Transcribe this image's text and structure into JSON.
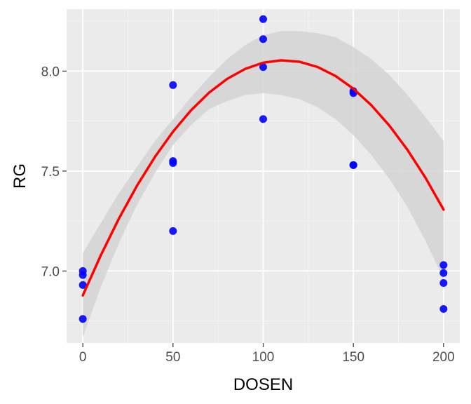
{
  "chart_data": {
    "type": "scatter",
    "title": "",
    "xlabel": "DOSEN",
    "ylabel": "RG",
    "xlim": [
      -9,
      209
    ],
    "ylim": [
      6.64,
      8.31
    ],
    "x_ticks": [
      0,
      50,
      100,
      150,
      200
    ],
    "x_tick_labels": [
      "0",
      "50",
      "100",
      "150",
      "200"
    ],
    "y_ticks": [
      7.0,
      7.5,
      8.0
    ],
    "y_tick_labels": [
      "7.0",
      "7.5",
      "8.0"
    ],
    "grid": true,
    "points": [
      {
        "x": 0,
        "y": 7.0
      },
      {
        "x": 0,
        "y": 6.98
      },
      {
        "x": 0,
        "y": 6.93
      },
      {
        "x": 0,
        "y": 6.76
      },
      {
        "x": 50,
        "y": 7.93
      },
      {
        "x": 50,
        "y": 7.55
      },
      {
        "x": 50,
        "y": 7.54
      },
      {
        "x": 50,
        "y": 7.2
      },
      {
        "x": 100,
        "y": 8.26
      },
      {
        "x": 100,
        "y": 8.16
      },
      {
        "x": 100,
        "y": 8.02
      },
      {
        "x": 100,
        "y": 7.76
      },
      {
        "x": 150,
        "y": 7.9
      },
      {
        "x": 150,
        "y": 7.89
      },
      {
        "x": 150,
        "y": 7.53
      },
      {
        "x": 150,
        "y": 7.53
      },
      {
        "x": 200,
        "y": 7.03
      },
      {
        "x": 200,
        "y": 6.99
      },
      {
        "x": 200,
        "y": 6.94
      },
      {
        "x": 200,
        "y": 6.81
      }
    ],
    "fit": {
      "method": "quadratic",
      "x": [
        0,
        10,
        20,
        30,
        40,
        50,
        60,
        70,
        80,
        90,
        100,
        110,
        120,
        130,
        140,
        150,
        160,
        170,
        180,
        190,
        200
      ],
      "y": [
        6.878,
        7.079,
        7.262,
        7.426,
        7.571,
        7.697,
        7.804,
        7.892,
        7.961,
        8.011,
        8.042,
        8.054,
        8.047,
        8.021,
        7.976,
        7.912,
        7.829,
        7.727,
        7.606,
        7.466,
        7.307
      ],
      "ci_lower": [
        6.67,
        6.92,
        7.14,
        7.33,
        7.49,
        7.63,
        7.73,
        7.81,
        7.85,
        7.88,
        7.89,
        7.88,
        7.86,
        7.82,
        7.76,
        7.68,
        7.58,
        7.46,
        7.32,
        7.15,
        6.96
      ],
      "ci_upper": [
        7.09,
        7.24,
        7.39,
        7.52,
        7.65,
        7.76,
        7.87,
        7.97,
        8.06,
        8.13,
        8.18,
        8.2,
        8.2,
        8.19,
        8.17,
        8.12,
        8.06,
        7.98,
        7.88,
        7.77,
        7.65
      ]
    },
    "colors": {
      "points": "#0000ff",
      "fit_line": "#ff0000",
      "ci_band": "#d4d4d4",
      "panel": "#ebebeb",
      "grid": "#ffffff"
    }
  }
}
